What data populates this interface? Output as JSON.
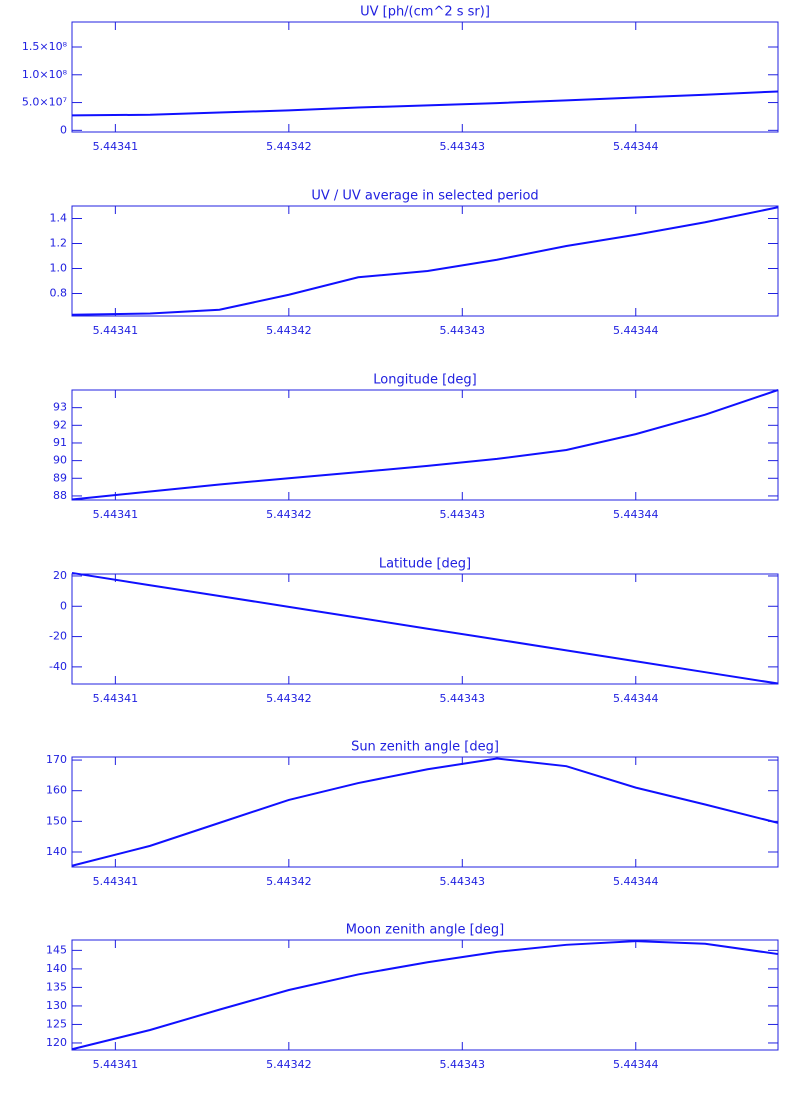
{
  "chart_data": [
    {
      "type": "line",
      "title": "UV [ph/(cm^2 s sr)]",
      "x": [
        5.4434075,
        5.443412,
        5.443416,
        5.44342,
        5.443424,
        5.443428,
        5.443432,
        5.443436,
        5.44344,
        5.443444,
        5.4434482
      ],
      "values": [
        27000000,
        28000000,
        32000000,
        36000000,
        41000000,
        45000000,
        49000000,
        54000000,
        59000000,
        64000000,
        70000000
      ],
      "color": "#1010ff",
      "xlim": [
        5.4434075,
        5.4434482
      ],
      "xticks": [
        5.44341,
        5.44342,
        5.44343,
        5.44344
      ],
      "ylim": [
        -3000000,
        195000000
      ],
      "yticks": [
        0,
        {
          "value": 50000000,
          "label": "5.0×10⁷"
        },
        {
          "value": 100000000,
          "label": "1.0×10⁸"
        },
        {
          "value": 150000000,
          "label": "1.5×10⁸"
        }
      ]
    },
    {
      "type": "line",
      "title": "UV / UV average in selected period",
      "x": [
        5.4434075,
        5.443412,
        5.443416,
        5.44342,
        5.443424,
        5.443428,
        5.443432,
        5.443436,
        5.44344,
        5.443444,
        5.4434482
      ],
      "values": [
        0.63,
        0.64,
        0.67,
        0.79,
        0.93,
        0.98,
        1.07,
        1.18,
        1.27,
        1.37,
        1.49
      ],
      "color": "#1010ff",
      "xlim": [
        5.4434075,
        5.4434482
      ],
      "xticks": [
        5.44341,
        5.44342,
        5.44343,
        5.44344
      ],
      "ylim": [
        0.62,
        1.5
      ],
      "yticks": [
        0.8,
        {
          "value": 1.0,
          "label": "1.0"
        },
        1.2,
        1.4
      ]
    },
    {
      "type": "line",
      "title": "Longitude [deg]",
      "x": [
        5.4434075,
        5.443412,
        5.443416,
        5.44342,
        5.443424,
        5.443428,
        5.443432,
        5.443436,
        5.44344,
        5.443444,
        5.4434482
      ],
      "values": [
        87.8,
        88.25,
        88.65,
        89.0,
        89.35,
        89.7,
        90.1,
        90.6,
        91.5,
        92.6,
        94.0
      ],
      "color": "#1010ff",
      "xlim": [
        5.4434075,
        5.4434482
      ],
      "xticks": [
        5.44341,
        5.44342,
        5.44343,
        5.44344
      ],
      "ylim": [
        87.77,
        94.0
      ],
      "yticks": [
        88,
        89,
        90,
        91,
        92,
        93
      ]
    },
    {
      "type": "line",
      "title": "Latitude [deg]",
      "x": [
        5.4434075,
        5.443412,
        5.443416,
        5.44342,
        5.443424,
        5.443428,
        5.443432,
        5.443436,
        5.44344,
        5.443444,
        5.4434482
      ],
      "values": [
        22,
        13.9,
        6.8,
        -0.4,
        -7.6,
        -14.8,
        -21.9,
        -29.1,
        -36.3,
        -43.5,
        -51
      ],
      "color": "#1010ff",
      "xlim": [
        5.4434075,
        5.4434482
      ],
      "xticks": [
        5.44341,
        5.44342,
        5.44343,
        5.44344
      ],
      "ylim": [
        -51.3,
        21.3
      ],
      "yticks": [
        -40,
        -20,
        0,
        20
      ]
    },
    {
      "type": "line",
      "title": "Sun zenith angle [deg]",
      "x": [
        5.4434075,
        5.443412,
        5.443416,
        5.44342,
        5.443424,
        5.443428,
        5.443432,
        5.443436,
        5.44344,
        5.443444,
        5.4434482
      ],
      "values": [
        135.5,
        142,
        149.5,
        157,
        162.5,
        167,
        170.5,
        168,
        161,
        155.5,
        149.5
      ],
      "color": "#1010ff",
      "xlim": [
        5.4434075,
        5.4434482
      ],
      "xticks": [
        5.44341,
        5.44342,
        5.44343,
        5.44344
      ],
      "ylim": [
        135.1,
        171
      ],
      "yticks": [
        140,
        150,
        160,
        170
      ]
    },
    {
      "type": "line",
      "title": "Moon zenith angle [deg]",
      "x": [
        5.4434075,
        5.443412,
        5.443416,
        5.44342,
        5.443424,
        5.443428,
        5.443432,
        5.443436,
        5.44344,
        5.443444,
        5.4434482
      ],
      "values": [
        118.3,
        123.5,
        129,
        134.3,
        138.5,
        141.8,
        144.6,
        146.5,
        147.5,
        146.8,
        144
      ],
      "color": "#1010ff",
      "xlim": [
        5.4434075,
        5.4434482
      ],
      "xticks": [
        5.44341,
        5.44342,
        5.44343,
        5.44344
      ],
      "ylim": [
        118.1,
        147.8
      ],
      "yticks": [
        120,
        125,
        130,
        135,
        140,
        145
      ]
    }
  ]
}
